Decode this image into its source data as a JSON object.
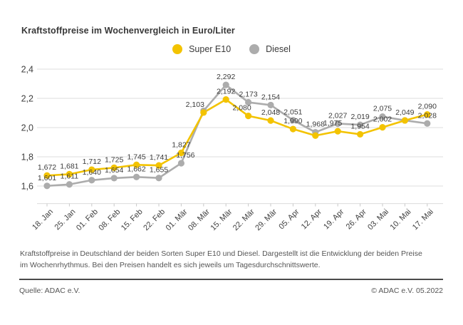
{
  "title": "Kraftstoffpreise im Wochenvergleich in Euro/Liter",
  "legend": {
    "items": [
      {
        "label": "Super E10",
        "color": "#F3C300"
      },
      {
        "label": "Diesel",
        "color": "#ACACAC"
      }
    ]
  },
  "footnote": "Kraftstoffpreise in Deutschland der beiden Sorten Super E10 und Diesel. Dargestellt ist die Entwicklung der beiden Preise im Wochenrhythmus. Bei den Preisen handelt es sich jeweils um Tagesdurchschnittswerte.",
  "source": "Quelle: ADAC e.V.",
  "copyright": "© ADAC e.V. 05.2022",
  "colors": {
    "super_e10": "#F3C300",
    "diesel": "#ACACAC",
    "gridline": "#DCDCDC",
    "axis_text": "#3F3F3F",
    "value_label": "#3C3C3C"
  },
  "chart_data": {
    "type": "line",
    "title": "Kraftstoffpreise im Wochenvergleich in Euro/Liter",
    "xlabel": "",
    "ylabel": "Euro/Liter",
    "ylim": [
      1.48,
      2.4
    ],
    "grid": true,
    "legend_position": "top-center",
    "y_ticks": [
      "2,4",
      "2,2",
      "2,0",
      "1,8",
      "1,6"
    ],
    "y_tick_values": [
      2.4,
      2.2,
      2.0,
      1.8,
      1.6
    ],
    "categories": [
      "18. Jan",
      "25. Jan",
      "01. Feb",
      "08. Feb",
      "15. Feb",
      "22. Feb",
      "01. Mär",
      "08. Mär",
      "15. Mär",
      "22. Mär",
      "29. Mär",
      "05. Apr",
      "12. Apr",
      "19. Apr",
      "26. Apr",
      "03. Mai",
      "10. Mai",
      "17. Mai"
    ],
    "series": [
      {
        "name": "Super E10",
        "color": "#F3C300",
        "values": [
          1.672,
          1.681,
          1.712,
          1.725,
          1.745,
          1.741,
          1.827,
          2.103,
          2.192,
          2.08,
          2.048,
          1.99,
          1.945,
          1.975,
          1.954,
          2.002,
          2.049,
          2.09
        ],
        "labels": [
          "1,672",
          "1,681",
          "1,712",
          "1,725",
          "1,745",
          "1,741",
          "1,827",
          "2,103",
          "2,192",
          "2,080",
          "2,048",
          "1,990",
          null,
          "1,975",
          "1,954",
          "2,002",
          null,
          "2,090"
        ]
      },
      {
        "name": "Diesel",
        "color": "#ACACAC",
        "values": [
          1.601,
          1.611,
          1.64,
          1.654,
          1.662,
          1.655,
          1.756,
          2.115,
          2.292,
          2.173,
          2.154,
          2.051,
          1.968,
          2.027,
          2.019,
          2.075,
          2.049,
          2.028
        ],
        "labels": [
          "1,601",
          "1,611",
          "1,640",
          "1,654",
          "1,662",
          "1,655",
          "1,756",
          null,
          "2,292",
          "2,173",
          "2,154",
          "2,051",
          "1,968",
          "2,027",
          "2,019",
          "2,075",
          "2,049",
          "2,028"
        ]
      }
    ]
  }
}
